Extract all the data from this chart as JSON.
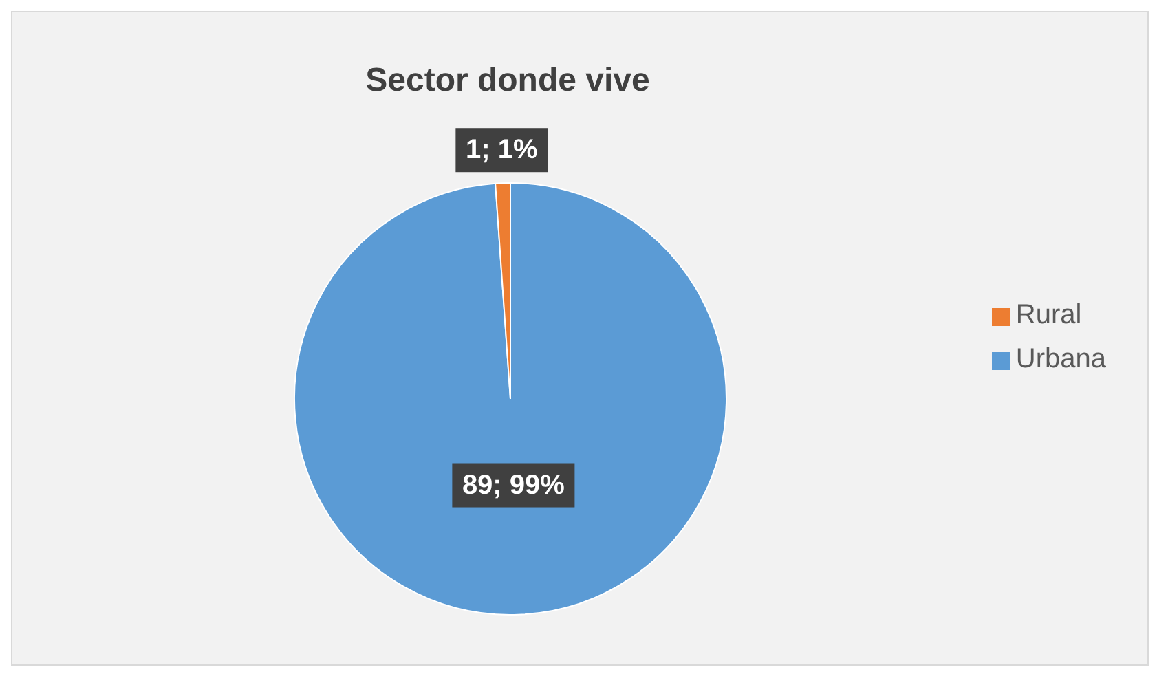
{
  "chart_data": {
    "type": "pie",
    "title": "Sector donde vive",
    "categories": [
      "Urbana",
      "Rural"
    ],
    "values": [
      89,
      1
    ],
    "colors": [
      "#5b9bd5",
      "#ed7d31"
    ],
    "value_labels": [
      "89; 99%",
      "1; 1%"
    ],
    "legend": "right"
  }
}
